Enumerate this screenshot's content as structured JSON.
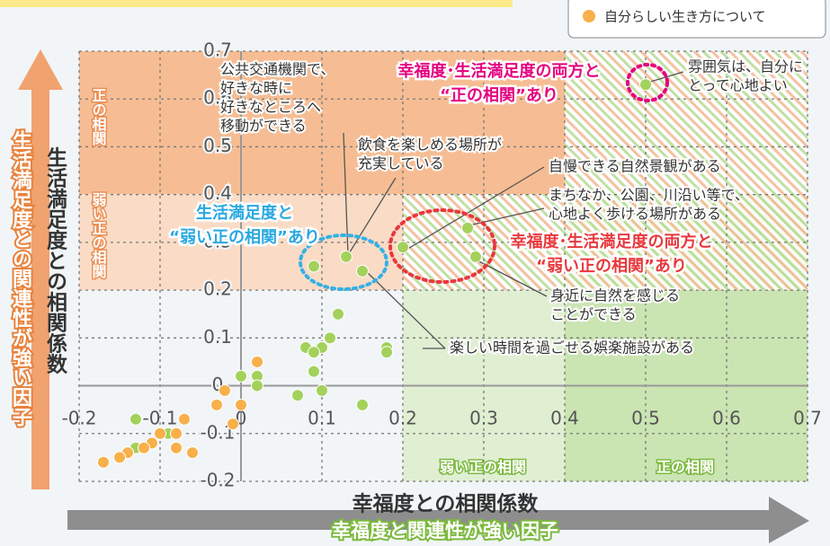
{
  "chart_data": {
    "type": "scatter",
    "xlabel": "幸福度との相関係数",
    "xlabel2": "幸福度と関連性が強い因子",
    "ylabel": "生活満足度との相関係数",
    "ylabel2": "生活満足度との関連性が強い因子",
    "xlim": [
      -0.2,
      0.7
    ],
    "ylim": [
      -0.2,
      0.7
    ],
    "xticks": [
      -0.2,
      -0.1,
      0,
      0.1,
      0.2,
      0.3,
      0.4,
      0.5,
      0.6,
      0.7
    ],
    "yticks": [
      -0.2,
      -0.1,
      0,
      0.1,
      0.2,
      0.3,
      0.4,
      0.5,
      0.6,
      0.7
    ],
    "grid": true,
    "series": [
      {
        "color": "#a3d15c",
        "x": [
          0.5,
          0.28,
          0.2,
          0.29,
          0.13,
          0.09,
          0.15,
          0.12,
          0.11,
          0.1,
          0.08,
          0.09,
          0.09,
          0.18,
          0.18,
          0.07,
          0.1,
          0.15,
          0.0,
          0.02,
          0.02,
          -0.13,
          -0.09,
          -0.13,
          -0.14
        ],
        "y": [
          0.63,
          0.33,
          0.29,
          0.27,
          0.27,
          0.25,
          0.24,
          0.15,
          0.1,
          0.08,
          0.08,
          0.07,
          0.03,
          0.08,
          0.07,
          -0.02,
          -0.01,
          -0.04,
          0.02,
          0.02,
          0.0,
          -0.07,
          -0.1,
          -0.13,
          -0.14
        ]
      },
      {
        "name": "自分らしい生き方について",
        "color": "#f7b04a",
        "x": [
          0.02,
          -0.02,
          -0.03,
          -0.01,
          0.0,
          -0.07,
          -0.08,
          -0.06,
          -0.1,
          -0.11,
          -0.12,
          -0.14,
          -0.15,
          -0.15,
          -0.17,
          -0.08
        ],
        "y": [
          0.05,
          -0.01,
          -0.04,
          -0.08,
          -0.04,
          -0.07,
          -0.1,
          -0.14,
          -0.1,
          -0.12,
          -0.13,
          -0.14,
          -0.15,
          -0.15,
          -0.16,
          -0.13
        ]
      }
    ],
    "region_labels": [
      "正の相関",
      "弱い正の相関",
      "弱い正の相関",
      "正の相関"
    ],
    "annotations": [
      {
        "text": [
          "公共交通機関で、",
          "好きな時に",
          "好きなところへ",
          "移動ができる"
        ]
      },
      {
        "text": [
          "飲食を楽しめる場所が",
          "充実している"
        ]
      },
      {
        "text": [
          "自慢できる自然景観がある"
        ]
      },
      {
        "text": [
          "まちなか、公園、川沿い等で、",
          "心地よく歩ける場所がある"
        ]
      },
      {
        "text": [
          "身近に自然を感じる",
          "ことができる"
        ]
      },
      {
        "text": [
          "楽しい時間を過ごせる娯楽施設がある"
        ]
      },
      {
        "text": [
          "雰囲気は、自分に",
          "とって心地よい"
        ]
      },
      {
        "text": [
          "幸福度･生活満足度の両方と",
          "“正の相関”あり"
        ]
      },
      {
        "text": [
          "生活満足度と",
          "“弱い正の相関”あり"
        ]
      },
      {
        "text": [
          "幸福度･生活満足度の両方と",
          "“弱い正の相関”あり"
        ]
      }
    ]
  }
}
